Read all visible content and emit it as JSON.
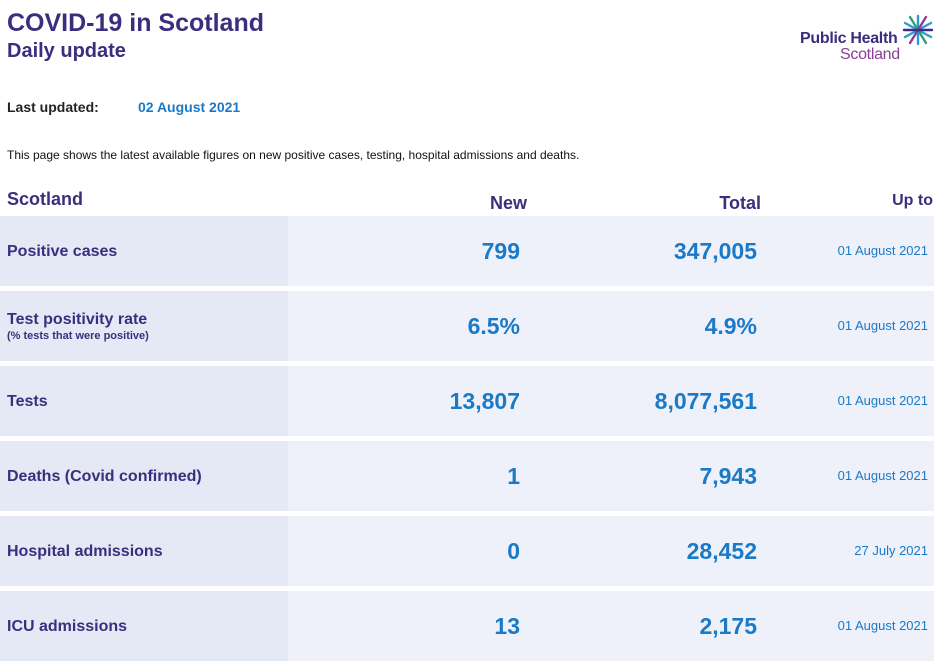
{
  "header": {
    "title": "COVID-19 in Scotland",
    "subtitle": "Daily update",
    "logo_line1": "Public Health",
    "logo_line2": "Scotland"
  },
  "meta": {
    "last_updated_label": "Last updated:",
    "last_updated_value": "02 August 2021",
    "intro": "This page shows the latest available figures on new positive cases, testing, hospital admissions and deaths."
  },
  "table": {
    "columns": {
      "region": "Scotland",
      "new": "New",
      "total": "Total",
      "up_to": "Up to"
    },
    "rows": [
      {
        "label": "Positive cases",
        "sublabel": "",
        "new": "799",
        "total": "347,005",
        "date": "01 August 2021"
      },
      {
        "label": "Test positivity rate",
        "sublabel": "(% tests that were positive)",
        "new": "6.5%",
        "total": "4.9%",
        "date": "01 August 2021"
      },
      {
        "label": "Tests",
        "sublabel": "",
        "new": "13,807",
        "total": "8,077,561",
        "date": "01 August 2021"
      },
      {
        "label": "Deaths (Covid confirmed)",
        "sublabel": "",
        "new": "1",
        "total": "7,943",
        "date": "01 August 2021"
      },
      {
        "label": "Hospital admissions",
        "sublabel": "",
        "new": "0",
        "total": "28,452",
        "date": "27 July 2021"
      },
      {
        "label": "ICU admissions",
        "sublabel": "",
        "new": "13",
        "total": "2,175",
        "date": "01 August 2021"
      }
    ]
  },
  "colors": {
    "brand_purple": "#3b2e7e",
    "value_blue": "#1a7ac7",
    "logo_magenta": "#8a3f97",
    "row_bg": "#eef1f9"
  }
}
